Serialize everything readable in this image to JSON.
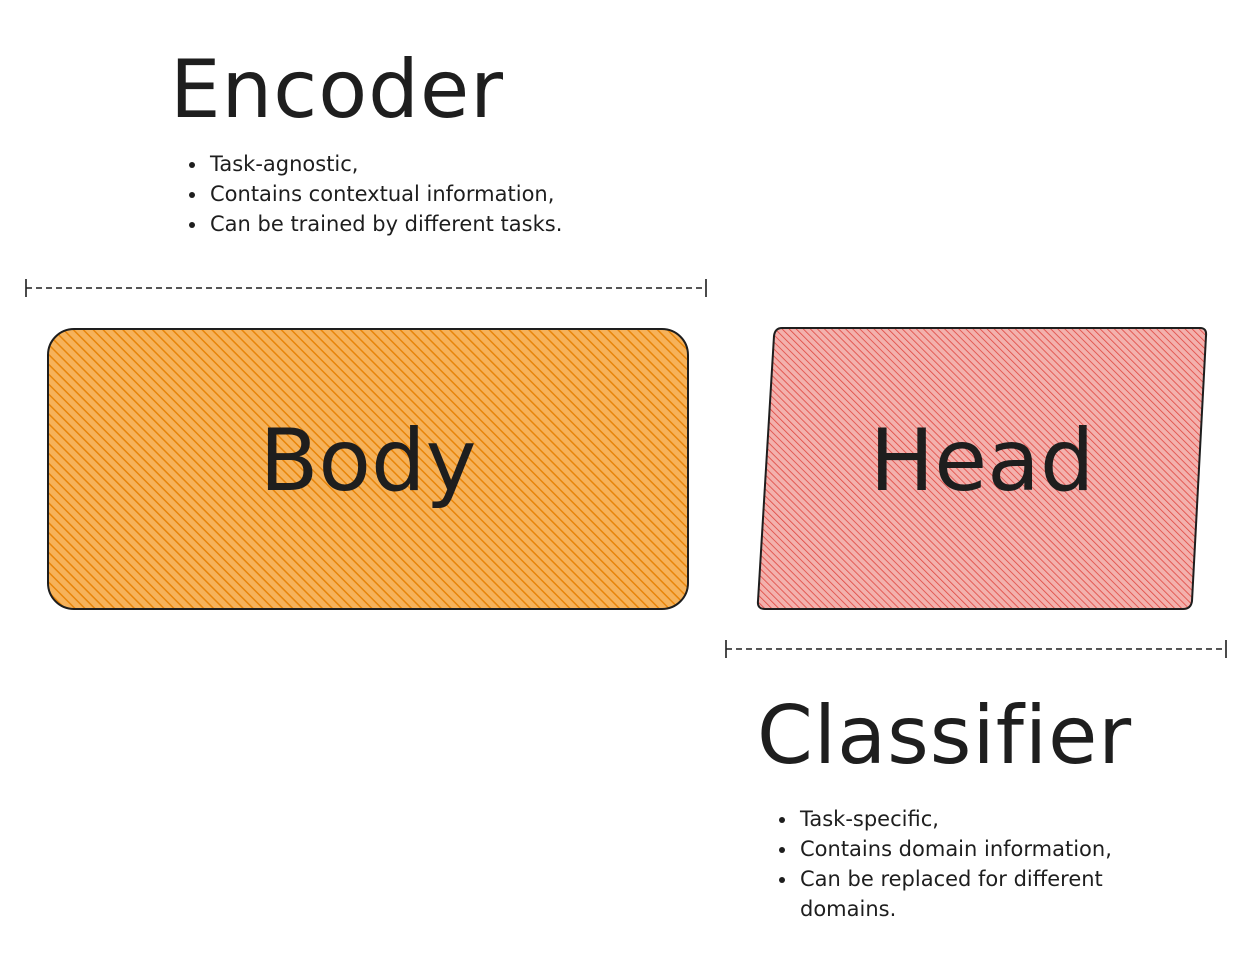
{
  "encoder": {
    "title": "Encoder",
    "bullets": [
      "Task-agnostic,",
      "Contains contextual information,",
      "Can be trained by different tasks."
    ]
  },
  "body_box": {
    "label": "Body",
    "fill": "#f08c00",
    "stroke": "#1e1e1e"
  },
  "head_box": {
    "label": "Head",
    "fill": "#e03131",
    "stroke": "#1e1e1e"
  },
  "classifier": {
    "title": "Classifier",
    "bullets": [
      "Task-specific,",
      "Contains domain information,",
      "Can be replaced for different domains."
    ]
  }
}
